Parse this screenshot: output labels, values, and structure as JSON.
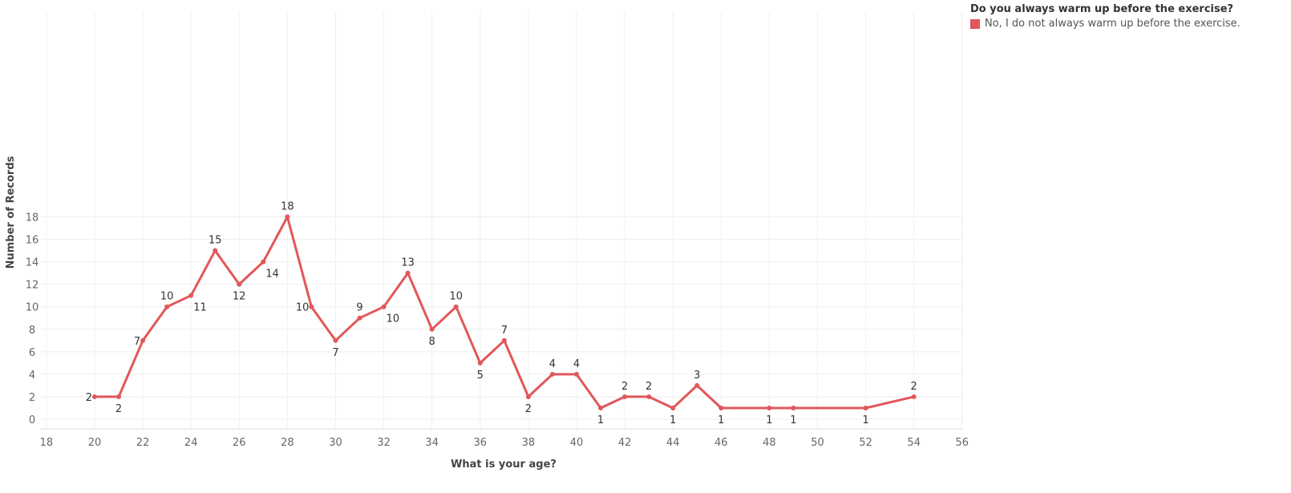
{
  "chart_data": {
    "type": "line",
    "title": "",
    "xlabel": "What is your age?",
    "ylabel": "Number of Records",
    "xlim": [
      17,
      56.4
    ],
    "ylim": [
      0,
      18
    ],
    "x_ticks": [
      18,
      20,
      22,
      24,
      26,
      28,
      30,
      32,
      34,
      36,
      38,
      40,
      42,
      44,
      46,
      48,
      50,
      52,
      54,
      56
    ],
    "y_ticks": [
      0,
      2,
      4,
      6,
      8,
      10,
      12,
      14,
      16,
      18
    ],
    "grid": true,
    "legend": {
      "title": "Do you always warm up before the exercise?",
      "position": "top-right",
      "items": [
        {
          "label": "No, I do not always warm up before the exercise.",
          "color": "#e15759"
        }
      ]
    },
    "series": [
      {
        "name": "No, I do not always warm up before the exercise.",
        "color": "#e15759",
        "x": [
          20,
          21,
          22,
          23,
          24,
          25,
          26,
          27,
          28,
          29,
          30,
          31,
          32,
          33,
          34,
          35,
          36,
          37,
          38,
          39,
          40,
          41,
          42,
          43,
          44,
          45,
          46,
          48,
          49,
          52,
          54
        ],
        "y": [
          2,
          2,
          7,
          10,
          11,
          15,
          12,
          14,
          18,
          10,
          7,
          9,
          10,
          13,
          8,
          10,
          5,
          7,
          2,
          4,
          4,
          1,
          2,
          2,
          1,
          3,
          1,
          1,
          1,
          1,
          2
        ]
      }
    ]
  }
}
